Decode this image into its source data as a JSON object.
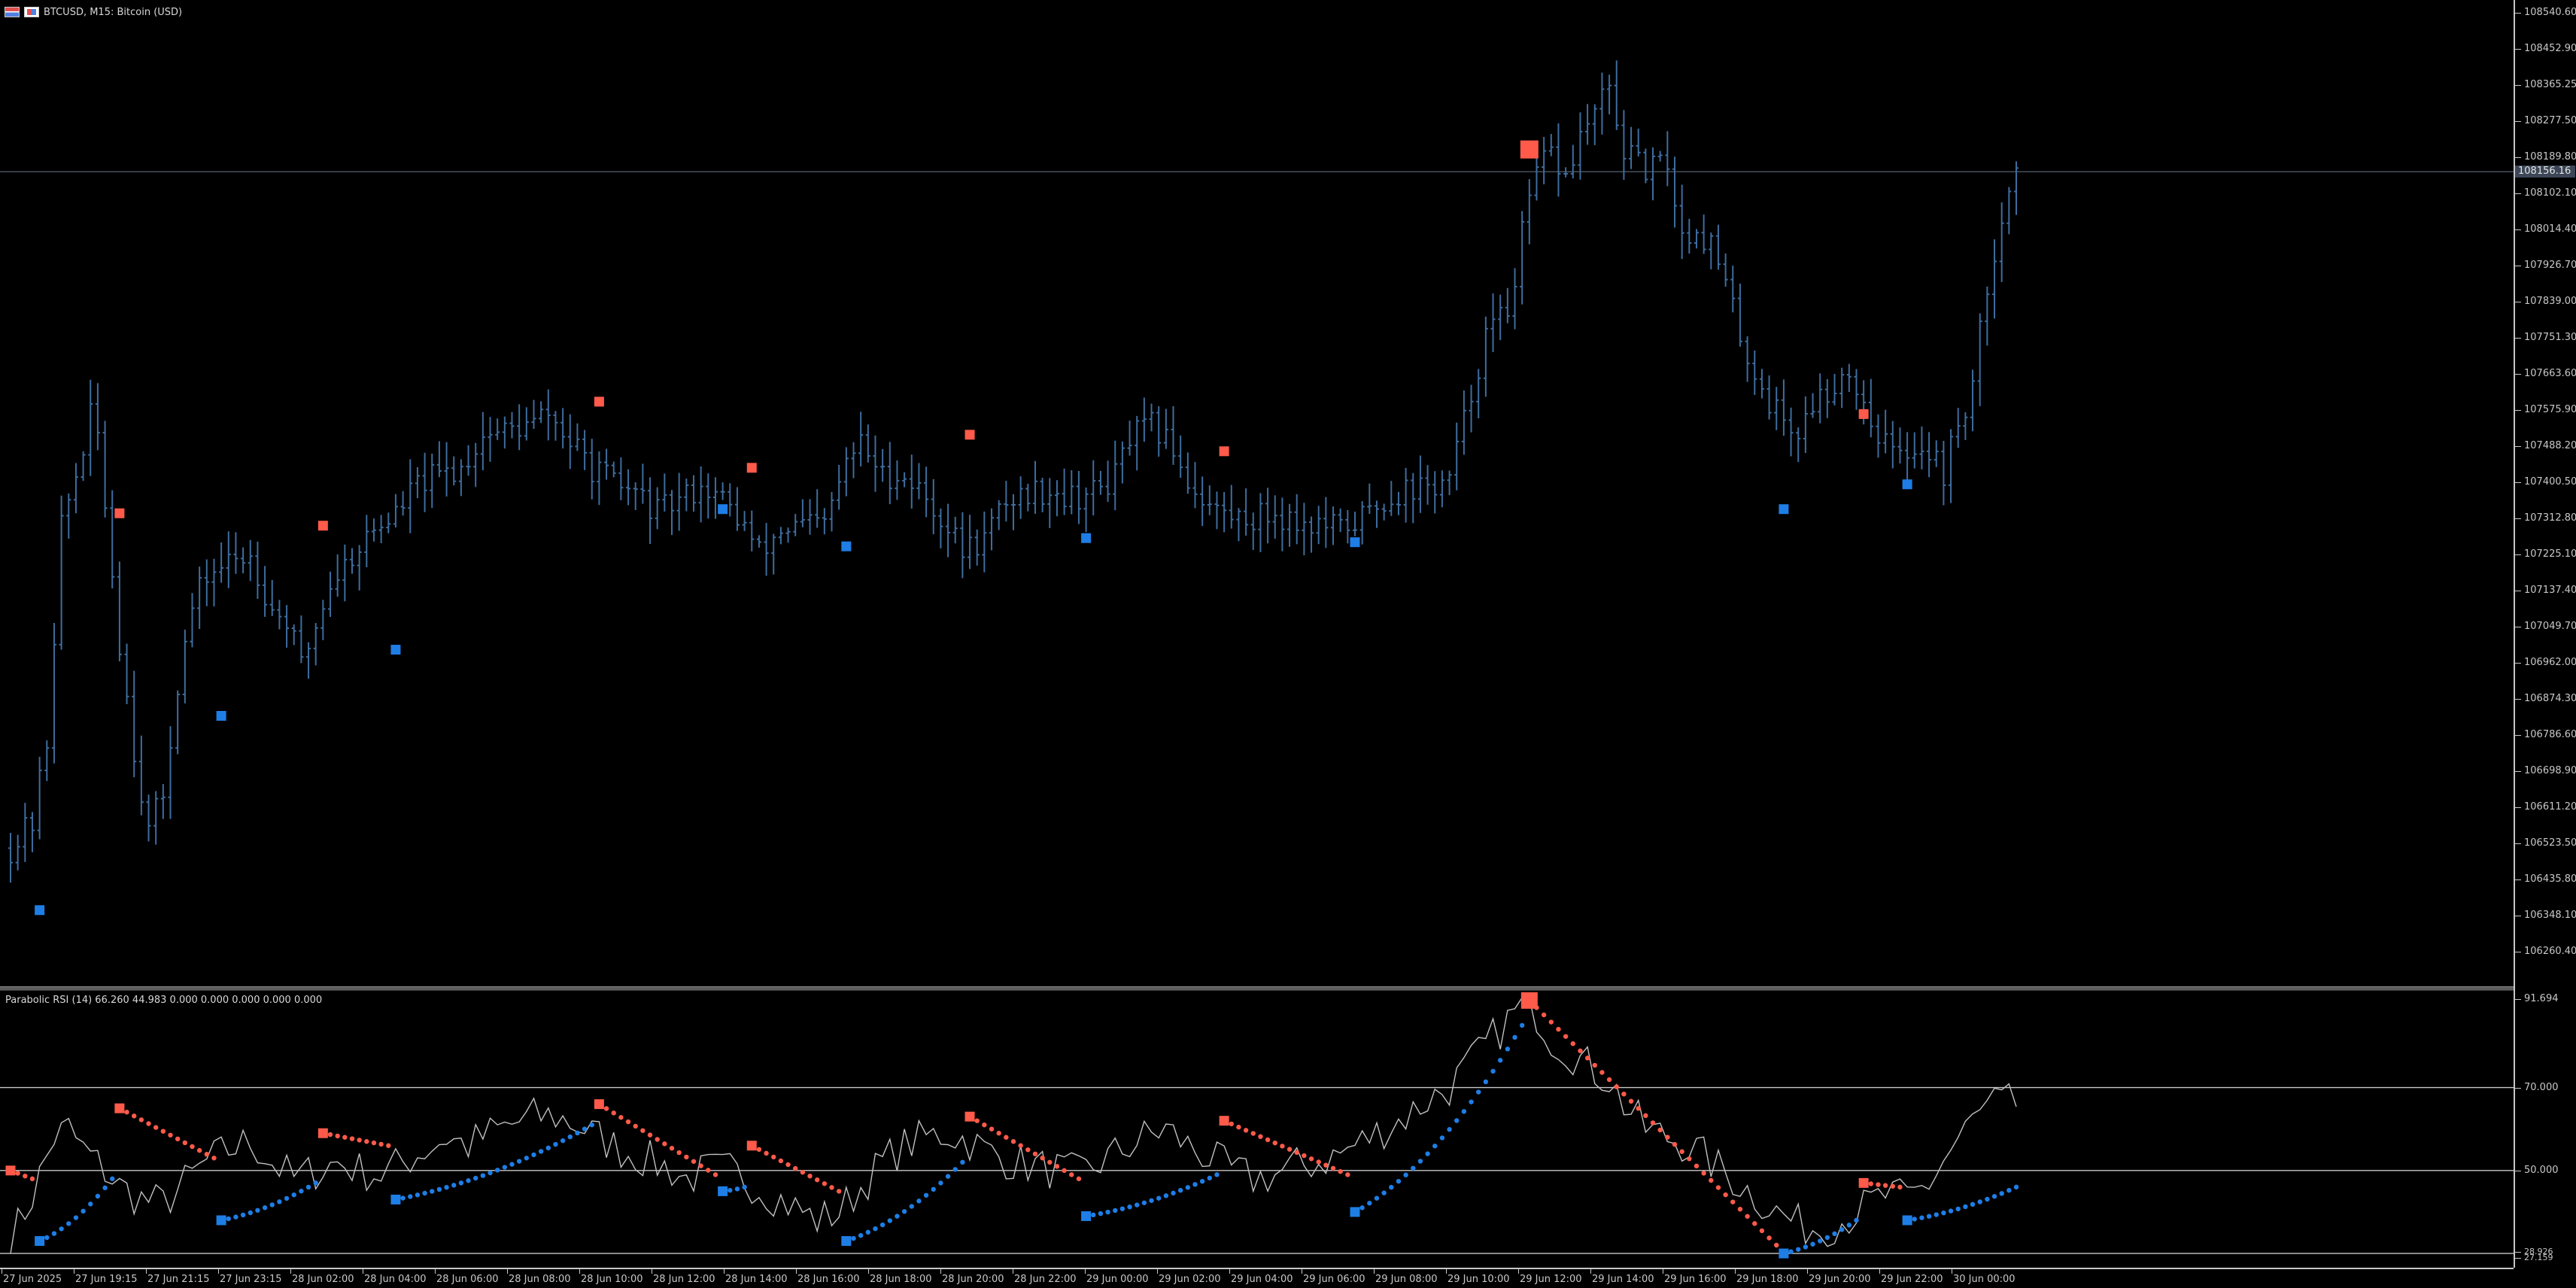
{
  "header": {
    "symbol_line": "BTCUSD, M15:  Bitcoin (USD)"
  },
  "indicator": {
    "header_line": "Parabolic RSI (14) 66.260 44.983 0.000 0.000 0.000 0.000 0.000"
  },
  "colors": {
    "background": "#000000",
    "bar": "#3e6d9e",
    "sar_bull": "#1e7ee6",
    "sar_bear": "#ff5a4a",
    "rsi_line": "#c0c0c0",
    "level_line": "#c8c8c8",
    "axis": "#c8c8c8"
  },
  "current_price_label": "108156.16",
  "current_price": 108156.16,
  "price_axis": {
    "labels": [
      "108540.60",
      "108452.90",
      "108365.25",
      "108277.50",
      "108189.80",
      "108102.10",
      "108014.40",
      "107926.70",
      "107839.00",
      "107751.30",
      "107663.60",
      "107575.90",
      "107488.20",
      "107400.50",
      "107312.80",
      "107225.10",
      "107137.40",
      "107049.70",
      "106962.00",
      "106874.30",
      "106786.60",
      "106698.90",
      "106611.20",
      "106523.50",
      "106435.80",
      "106348.10",
      "106260.40"
    ],
    "max": 108540.6,
    "min": 106260.4
  },
  "rsi_axis": {
    "labels": {
      "top": "91.694",
      "upper": "70.000",
      "middle": "50.000",
      "bottom_a": "28.926",
      "bottom_b": "27.159"
    },
    "max": 91.694,
    "min": 28.926,
    "levels": [
      70,
      50,
      30
    ]
  },
  "time_axis": {
    "labels": [
      "27 Jun 2025",
      "27 Jun 19:15",
      "27 Jun 21:15",
      "27 Jun 23:15",
      "28 Jun 02:00",
      "28 Jun 04:00",
      "28 Jun 06:00",
      "28 Jun 08:00",
      "28 Jun 10:00",
      "28 Jun 12:00",
      "28 Jun 14:00",
      "28 Jun 16:00",
      "28 Jun 18:00",
      "28 Jun 20:00",
      "28 Jun 22:00",
      "29 Jun 00:00",
      "29 Jun 02:00",
      "29 Jun 04:00",
      "29 Jun 06:00",
      "29 Jun 08:00",
      "29 Jun 10:00",
      "29 Jun 12:00",
      "29 Jun 14:00",
      "29 Jun 16:00",
      "29 Jun 18:00",
      "29 Jun 20:00",
      "29 Jun 22:00",
      "30 Jun 00:00"
    ]
  },
  "chart_data": {
    "type": "ohlc",
    "symbol": "BTCUSD",
    "timeframe": "M15",
    "anchors_close": [
      [
        0,
        106520
      ],
      [
        3,
        106580
      ],
      [
        5,
        106780
      ],
      [
        7,
        107300
      ],
      [
        9,
        107420
      ],
      [
        11,
        107560
      ],
      [
        12,
        107520
      ],
      [
        15,
        107020
      ],
      [
        17,
        106760
      ],
      [
        19,
        106560
      ],
      [
        21,
        106650
      ],
      [
        23,
        106920
      ],
      [
        25,
        107100
      ],
      [
        27,
        107180
      ],
      [
        30,
        107210
      ],
      [
        33,
        107230
      ],
      [
        36,
        107100
      ],
      [
        38,
        107070
      ],
      [
        40,
        106960
      ],
      [
        42,
        107060
      ],
      [
        44,
        107160
      ],
      [
        47,
        107230
      ],
      [
        50,
        107290
      ],
      [
        53,
        107330
      ],
      [
        56,
        107400
      ],
      [
        59,
        107420
      ],
      [
        62,
        107440
      ],
      [
        65,
        107520
      ],
      [
        68,
        107530
      ],
      [
        71,
        107540
      ],
      [
        74,
        107570
      ],
      [
        77,
        107500
      ],
      [
        80,
        107440
      ],
      [
        83,
        107400
      ],
      [
        86,
        107380
      ],
      [
        89,
        107330
      ],
      [
        92,
        107360
      ],
      [
        95,
        107400
      ],
      [
        98,
        107360
      ],
      [
        101,
        107300
      ],
      [
        103,
        107230
      ],
      [
        106,
        107290
      ],
      [
        109,
        107300
      ],
      [
        112,
        107300
      ],
      [
        115,
        107450
      ],
      [
        117,
        107500
      ],
      [
        120,
        107420
      ],
      [
        122,
        107430
      ],
      [
        125,
        107390
      ],
      [
        128,
        107320
      ],
      [
        131,
        107240
      ],
      [
        134,
        107270
      ],
      [
        137,
        107360
      ],
      [
        140,
        107380
      ],
      [
        143,
        107390
      ],
      [
        146,
        107370
      ],
      [
        149,
        107380
      ],
      [
        152,
        107420
      ],
      [
        154,
        107510
      ],
      [
        157,
        107540
      ],
      [
        160,
        107490
      ],
      [
        162,
        107410
      ],
      [
        165,
        107350
      ],
      [
        168,
        107320
      ],
      [
        171,
        107320
      ],
      [
        174,
        107330
      ],
      [
        177,
        107310
      ],
      [
        180,
        107300
      ],
      [
        183,
        107290
      ],
      [
        186,
        107320
      ],
      [
        189,
        107360
      ],
      [
        192,
        107390
      ],
      [
        195,
        107390
      ],
      [
        198,
        107410
      ],
      [
        201,
        107620
      ],
      [
        203,
        107760
      ],
      [
        206,
        107820
      ],
      [
        208,
        108000
      ],
      [
        210,
        108150
      ],
      [
        212,
        108200
      ],
      [
        214,
        108140
      ],
      [
        216,
        108240
      ],
      [
        218,
        108300
      ],
      [
        220,
        108350
      ],
      [
        222,
        108210
      ],
      [
        224,
        108170
      ],
      [
        226,
        108160
      ],
      [
        228,
        108180
      ],
      [
        230,
        108000
      ],
      [
        232,
        108020
      ],
      [
        234,
        107980
      ],
      [
        236,
        107880
      ],
      [
        238,
        107760
      ],
      [
        240,
        107670
      ],
      [
        242,
        107600
      ],
      [
        244,
        107560
      ],
      [
        246,
        107520
      ],
      [
        248,
        107600
      ],
      [
        250,
        107620
      ],
      [
        252,
        107680
      ],
      [
        254,
        107640
      ],
      [
        256,
        107560
      ],
      [
        258,
        107500
      ],
      [
        260,
        107460
      ],
      [
        262,
        107500
      ],
      [
        264,
        107480
      ],
      [
        266,
        107430
      ],
      [
        268,
        107540
      ],
      [
        270,
        107640
      ],
      [
        272,
        107880
      ],
      [
        274,
        108060
      ],
      [
        276,
        108156
      ]
    ],
    "bar_count": 277,
    "sar_markers": [
      {
        "type": "bull",
        "time_index": 4,
        "price": 106370
      },
      {
        "type": "bear",
        "time_index": 15,
        "price": 107330
      },
      {
        "type": "bull",
        "time_index": 29,
        "price": 106840
      },
      {
        "type": "bear",
        "time_index": 43,
        "price": 107300
      },
      {
        "type": "bull",
        "time_index": 53,
        "price": 107000
      },
      {
        "type": "bear",
        "time_index": 81,
        "price": 107600
      },
      {
        "type": "bear",
        "time_index": 102,
        "price": 107440
      },
      {
        "type": "bull",
        "time_index": 98,
        "price": 107340
      },
      {
        "type": "bull",
        "time_index": 115,
        "price": 107250
      },
      {
        "type": "bear",
        "time_index": 132,
        "price": 107520
      },
      {
        "type": "bull",
        "time_index": 148,
        "price": 107270
      },
      {
        "type": "bear",
        "time_index": 167,
        "price": 107480
      },
      {
        "type": "bull",
        "time_index": 185,
        "price": 107260
      },
      {
        "type": "bear",
        "time_index": 209,
        "price": 108210,
        "large": true
      },
      {
        "type": "bull",
        "time_index": 244,
        "price": 107340
      },
      {
        "type": "bear",
        "time_index": 255,
        "price": 107570
      },
      {
        "type": "bull",
        "time_index": 261,
        "price": 107400
      }
    ],
    "rsi_anchors": [
      [
        0,
        33
      ],
      [
        3,
        44
      ],
      [
        6,
        58
      ],
      [
        8,
        60
      ],
      [
        10,
        55
      ],
      [
        13,
        50
      ],
      [
        15,
        46
      ],
      [
        18,
        43
      ],
      [
        21,
        42
      ],
      [
        24,
        47
      ],
      [
        27,
        52
      ],
      [
        30,
        55
      ],
      [
        33,
        57
      ],
      [
        36,
        52
      ],
      [
        39,
        48
      ],
      [
        42,
        50
      ],
      [
        45,
        52
      ],
      [
        48,
        50
      ],
      [
        51,
        49
      ],
      [
        54,
        52
      ],
      [
        57,
        55
      ],
      [
        60,
        58
      ],
      [
        63,
        56
      ],
      [
        66,
        59
      ],
      [
        69,
        61
      ],
      [
        72,
        63
      ],
      [
        75,
        63
      ],
      [
        78,
        61
      ],
      [
        81,
        58
      ],
      [
        84,
        55
      ],
      [
        87,
        53
      ],
      [
        90,
        51
      ],
      [
        93,
        48
      ],
      [
        96,
        50
      ],
      [
        99,
        50
      ],
      [
        102,
        47
      ],
      [
        105,
        44
      ],
      [
        108,
        41
      ],
      [
        111,
        38
      ],
      [
        114,
        40
      ],
      [
        117,
        46
      ],
      [
        120,
        52
      ],
      [
        123,
        56
      ],
      [
        126,
        58
      ],
      [
        129,
        59
      ],
      [
        132,
        57
      ],
      [
        135,
        54
      ],
      [
        138,
        52
      ],
      [
        141,
        51
      ],
      [
        144,
        50
      ],
      [
        147,
        49
      ],
      [
        150,
        52
      ],
      [
        153,
        55
      ],
      [
        156,
        58
      ],
      [
        159,
        60
      ],
      [
        162,
        56
      ],
      [
        165,
        53
      ],
      [
        168,
        50
      ],
      [
        171,
        48
      ],
      [
        174,
        49
      ],
      [
        177,
        51
      ],
      [
        180,
        52
      ],
      [
        183,
        54
      ],
      [
        186,
        57
      ],
      [
        189,
        60
      ],
      [
        192,
        63
      ],
      [
        195,
        67
      ],
      [
        198,
        70
      ],
      [
        201,
        76
      ],
      [
        204,
        82
      ],
      [
        207,
        88
      ],
      [
        209,
        91
      ],
      [
        212,
        82
      ],
      [
        215,
        78
      ],
      [
        218,
        74
      ],
      [
        220,
        72
      ],
      [
        222,
        66
      ],
      [
        225,
        60
      ],
      [
        228,
        58
      ],
      [
        231,
        56
      ],
      [
        234,
        52
      ],
      [
        237,
        48
      ],
      [
        240,
        44
      ],
      [
        243,
        40
      ],
      [
        246,
        37
      ],
      [
        249,
        36
      ],
      [
        252,
        38
      ],
      [
        255,
        41
      ],
      [
        258,
        44
      ],
      [
        261,
        43
      ],
      [
        264,
        47
      ],
      [
        267,
        55
      ],
      [
        270,
        62
      ],
      [
        273,
        66
      ],
      [
        276,
        66
      ]
    ],
    "psar_rsi_segments": [
      {
        "type": "bear",
        "start": 0,
        "end": 3,
        "from": 50,
        "to": 48
      },
      {
        "type": "bull",
        "start": 4,
        "end": 14,
        "from": 33,
        "to": 48
      },
      {
        "type": "bear",
        "start": 15,
        "end": 28,
        "from": 65,
        "to": 53
      },
      {
        "type": "bull",
        "start": 29,
        "end": 42,
        "from": 38,
        "to": 47
      },
      {
        "type": "bear",
        "start": 43,
        "end": 52,
        "from": 59,
        "to": 56
      },
      {
        "type": "bull",
        "start": 53,
        "end": 80,
        "from": 43,
        "to": 61
      },
      {
        "type": "bear",
        "start": 81,
        "end": 97,
        "from": 66,
        "to": 49
      },
      {
        "type": "bull",
        "start": 98,
        "end": 101,
        "from": 45,
        "to": 46
      },
      {
        "type": "bear",
        "start": 102,
        "end": 114,
        "from": 56,
        "to": 45
      },
      {
        "type": "bull",
        "start": 115,
        "end": 131,
        "from": 33,
        "to": 52
      },
      {
        "type": "bear",
        "start": 132,
        "end": 147,
        "from": 63,
        "to": 48
      },
      {
        "type": "bull",
        "start": 148,
        "end": 166,
        "from": 39,
        "to": 49
      },
      {
        "type": "bear",
        "start": 167,
        "end": 184,
        "from": 62,
        "to": 49
      },
      {
        "type": "bull",
        "start": 185,
        "end": 208,
        "from": 40,
        "to": 85
      },
      {
        "type": "bear",
        "start": 209,
        "end": 243,
        "from": 91,
        "to": 32
      },
      {
        "type": "bull",
        "start": 244,
        "end": 254,
        "from": 30,
        "to": 38
      },
      {
        "type": "bear",
        "start": 255,
        "end": 260,
        "from": 47,
        "to": 46
      },
      {
        "type": "bull",
        "start": 261,
        "end": 276,
        "from": 38,
        "to": 46
      }
    ]
  }
}
